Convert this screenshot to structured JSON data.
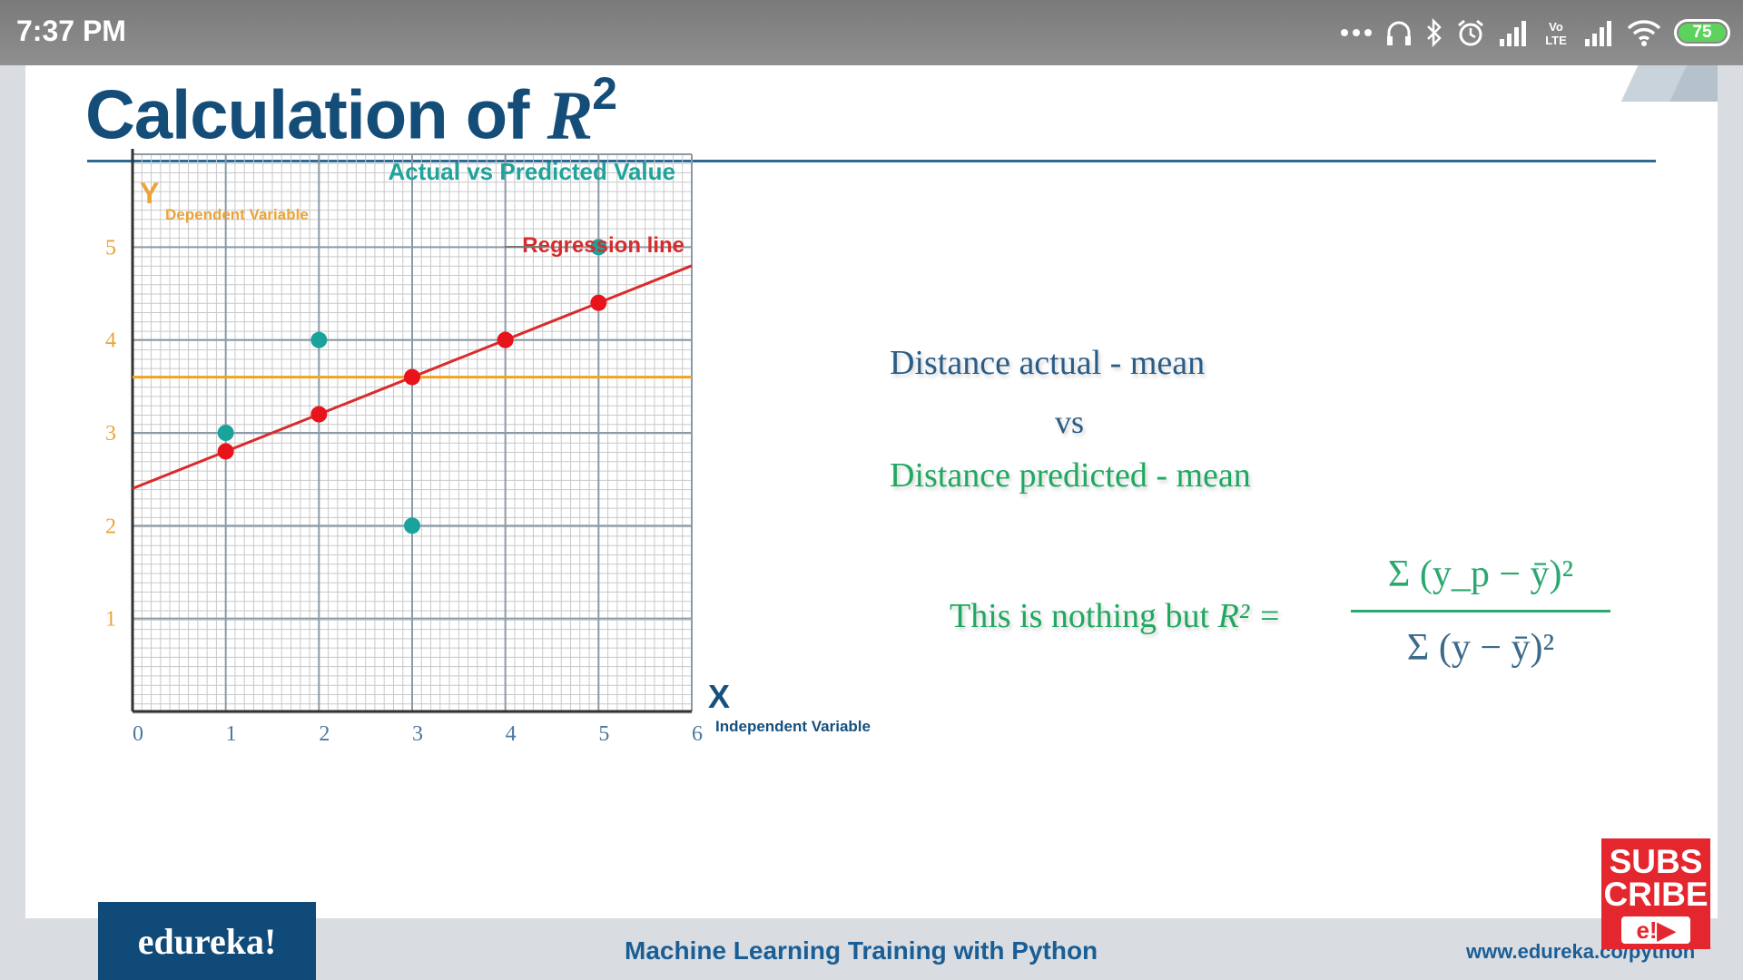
{
  "status_bar": {
    "time": "7:37 PM",
    "battery": "75",
    "network_label": "Vo LTE",
    "icons": [
      "more-dots-icon",
      "headphones-icon",
      "bluetooth-icon",
      "alarm-icon",
      "signal-icon",
      "volte-icon",
      "signal-icon",
      "wifi-icon",
      "battery-icon"
    ]
  },
  "slide": {
    "title_prefix": "Calculation of ",
    "title_var": "R",
    "title_sup": "2",
    "text_actual": "Distance actual - mean",
    "text_vs": "vs",
    "text_predicted": "Distance predicted - mean",
    "text_nothing": "This is nothing but ",
    "formula_lhs": "R² =",
    "numerator": "Σ (y_p − ȳ)²",
    "denominator": "Σ (y − ȳ)²"
  },
  "chart_data": {
    "type": "scatter",
    "title": "Actual vs Predicted Value",
    "xlabel": "X",
    "xlabel_sub": "Independent Variable",
    "ylabel": "Y",
    "ylabel_sub": "Dependent Variable",
    "xlim": [
      0,
      6
    ],
    "ylim": [
      0,
      6
    ],
    "x_ticks": [
      0,
      1,
      2,
      3,
      4,
      5,
      6
    ],
    "y_ticks": [
      1,
      2,
      3,
      4,
      5
    ],
    "grid": true,
    "mean_y": 3.6,
    "regression_label": "Regression line",
    "regression_line": {
      "slope": 0.4,
      "intercept": 2.4
    },
    "series": [
      {
        "name": "Actual",
        "color": "#19a39a",
        "points": [
          [
            1,
            3
          ],
          [
            2,
            4
          ],
          [
            3,
            2
          ],
          [
            4,
            4
          ],
          [
            5,
            5
          ]
        ]
      },
      {
        "name": "Predicted",
        "color": "#e8131b",
        "points": [
          [
            1,
            2.8
          ],
          [
            2,
            3.2
          ],
          [
            3,
            3.6
          ],
          [
            4,
            4.0
          ],
          [
            5,
            4.4
          ]
        ]
      }
    ],
    "colors": {
      "mean_line": "#f2a21c",
      "regression_line": "#d92b2b",
      "axis_labels": "#e9a43a",
      "title": "#1fa39a"
    }
  },
  "footer": {
    "logo": "edureka!",
    "course": "Machine Learning Training with Python",
    "url": "www.edureka.co/python",
    "subscribe_line1": "SUBS",
    "subscribe_line2": "CRIBE",
    "subscribe_badge": "e!▶"
  }
}
